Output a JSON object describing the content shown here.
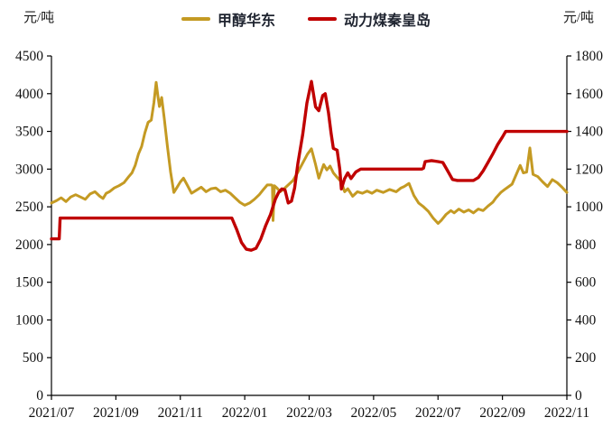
{
  "chart_data": {
    "type": "line",
    "title": "",
    "left_axis": {
      "unit": "元/吨",
      "min": 0,
      "max": 4500,
      "step": 500,
      "ticks": [
        "0",
        "500",
        "1000",
        "1500",
        "2000",
        "2500",
        "3000",
        "3500",
        "4000",
        "4500"
      ]
    },
    "right_axis": {
      "unit": "元/吨",
      "min": 0,
      "max": 1800,
      "step": 200,
      "ticks": [
        "0",
        "200",
        "400",
        "600",
        "800",
        "1000",
        "1200",
        "1400",
        "1600",
        "1800"
      ]
    },
    "x_axis": {
      "labels": [
        "2021/07",
        "2021/09",
        "2021/11",
        "2022/01",
        "2022/03",
        "2022/05",
        "2022/07",
        "2022/09",
        "2022/11"
      ],
      "months_per_label": 2,
      "span_months": 16
    },
    "grid": "off",
    "legend_position": "top-center",
    "series": [
      {
        "name": "甲醇华东",
        "axis": "left",
        "color": "#C49A23",
        "width": 3,
        "points": [
          [
            0,
            2550
          ],
          [
            0.15,
            2580
          ],
          [
            0.3,
            2620
          ],
          [
            0.45,
            2570
          ],
          [
            0.6,
            2630
          ],
          [
            0.75,
            2660
          ],
          [
            0.9,
            2630
          ],
          [
            1.05,
            2600
          ],
          [
            1.2,
            2670
          ],
          [
            1.35,
            2700
          ],
          [
            1.5,
            2640
          ],
          [
            1.6,
            2610
          ],
          [
            1.7,
            2680
          ],
          [
            1.8,
            2700
          ],
          [
            1.95,
            2750
          ],
          [
            2.1,
            2780
          ],
          [
            2.25,
            2820
          ],
          [
            2.4,
            2900
          ],
          [
            2.5,
            2950
          ],
          [
            2.6,
            3050
          ],
          [
            2.7,
            3200
          ],
          [
            2.8,
            3300
          ],
          [
            2.9,
            3480
          ],
          [
            3.0,
            3620
          ],
          [
            3.1,
            3650
          ],
          [
            3.18,
            3880
          ],
          [
            3.25,
            4150
          ],
          [
            3.3,
            3980
          ],
          [
            3.35,
            3830
          ],
          [
            3.42,
            3950
          ],
          [
            3.5,
            3680
          ],
          [
            3.6,
            3300
          ],
          [
            3.7,
            2960
          ],
          [
            3.8,
            2690
          ],
          [
            3.9,
            2760
          ],
          [
            4.0,
            2830
          ],
          [
            4.1,
            2880
          ],
          [
            4.2,
            2800
          ],
          [
            4.35,
            2680
          ],
          [
            4.5,
            2720
          ],
          [
            4.65,
            2760
          ],
          [
            4.8,
            2700
          ],
          [
            4.95,
            2740
          ],
          [
            5.1,
            2750
          ],
          [
            5.25,
            2700
          ],
          [
            5.4,
            2720
          ],
          [
            5.55,
            2680
          ],
          [
            5.7,
            2620
          ],
          [
            5.85,
            2560
          ],
          [
            6.0,
            2520
          ],
          [
            6.15,
            2550
          ],
          [
            6.3,
            2600
          ],
          [
            6.45,
            2660
          ],
          [
            6.6,
            2740
          ],
          [
            6.7,
            2790
          ],
          [
            6.83,
            2790
          ],
          [
            6.86,
            2780
          ],
          [
            6.88,
            2320
          ],
          [
            6.92,
            2780
          ],
          [
            7.0,
            2750
          ],
          [
            7.1,
            2700
          ],
          [
            7.2,
            2730
          ],
          [
            7.35,
            2790
          ],
          [
            7.5,
            2850
          ],
          [
            7.65,
            2960
          ],
          [
            7.8,
            3080
          ],
          [
            7.95,
            3200
          ],
          [
            8.07,
            3270
          ],
          [
            8.2,
            3060
          ],
          [
            8.3,
            2880
          ],
          [
            8.45,
            3060
          ],
          [
            8.55,
            2990
          ],
          [
            8.65,
            3040
          ],
          [
            8.75,
            2950
          ],
          [
            8.85,
            2900
          ],
          [
            9.0,
            2830
          ],
          [
            9.1,
            2700
          ],
          [
            9.2,
            2740
          ],
          [
            9.35,
            2640
          ],
          [
            9.5,
            2700
          ],
          [
            9.65,
            2680
          ],
          [
            9.8,
            2710
          ],
          [
            9.95,
            2680
          ],
          [
            10.1,
            2720
          ],
          [
            10.3,
            2690
          ],
          [
            10.5,
            2730
          ],
          [
            10.7,
            2700
          ],
          [
            10.85,
            2750
          ],
          [
            10.95,
            2770
          ],
          [
            11.1,
            2810
          ],
          [
            11.25,
            2650
          ],
          [
            11.4,
            2550
          ],
          [
            11.55,
            2500
          ],
          [
            11.7,
            2440
          ],
          [
            11.85,
            2350
          ],
          [
            12.0,
            2280
          ],
          [
            12.1,
            2320
          ],
          [
            12.25,
            2400
          ],
          [
            12.4,
            2450
          ],
          [
            12.5,
            2420
          ],
          [
            12.65,
            2470
          ],
          [
            12.8,
            2430
          ],
          [
            12.95,
            2460
          ],
          [
            13.1,
            2420
          ],
          [
            13.25,
            2470
          ],
          [
            13.4,
            2450
          ],
          [
            13.55,
            2510
          ],
          [
            13.7,
            2560
          ],
          [
            13.8,
            2620
          ],
          [
            13.95,
            2690
          ],
          [
            14.1,
            2740
          ],
          [
            14.3,
            2800
          ],
          [
            14.45,
            2950
          ],
          [
            14.55,
            3050
          ],
          [
            14.65,
            2950
          ],
          [
            14.75,
            2960
          ],
          [
            14.85,
            3280
          ],
          [
            14.95,
            2930
          ],
          [
            15.1,
            2900
          ],
          [
            15.25,
            2830
          ],
          [
            15.4,
            2770
          ],
          [
            15.55,
            2860
          ],
          [
            15.7,
            2820
          ],
          [
            15.85,
            2760
          ],
          [
            16,
            2690
          ]
        ]
      },
      {
        "name": "动力煤秦皇岛",
        "axis": "right",
        "color": "#C00000",
        "width": 3.4,
        "points": [
          [
            0,
            830
          ],
          [
            0.24,
            830
          ],
          [
            0.27,
            940
          ],
          [
            5.6,
            940
          ],
          [
            5.75,
            880
          ],
          [
            5.9,
            810
          ],
          [
            6.05,
            775
          ],
          [
            6.2,
            770
          ],
          [
            6.35,
            780
          ],
          [
            6.5,
            830
          ],
          [
            6.65,
            900
          ],
          [
            6.8,
            960
          ],
          [
            6.95,
            1040
          ],
          [
            7.05,
            1075
          ],
          [
            7.15,
            1095
          ],
          [
            7.25,
            1090
          ],
          [
            7.35,
            1020
          ],
          [
            7.45,
            1030
          ],
          [
            7.55,
            1100
          ],
          [
            7.65,
            1230
          ],
          [
            7.8,
            1385
          ],
          [
            7.93,
            1550
          ],
          [
            8.07,
            1665
          ],
          [
            8.2,
            1530
          ],
          [
            8.3,
            1510
          ],
          [
            8.42,
            1590
          ],
          [
            8.5,
            1600
          ],
          [
            8.6,
            1500
          ],
          [
            8.68,
            1390
          ],
          [
            8.75,
            1310
          ],
          [
            8.87,
            1300
          ],
          [
            8.95,
            1200
          ],
          [
            9.0,
            1095
          ],
          [
            9.1,
            1150
          ],
          [
            9.2,
            1180
          ],
          [
            9.3,
            1150
          ],
          [
            9.45,
            1185
          ],
          [
            9.6,
            1200
          ],
          [
            10.5,
            1200
          ],
          [
            11.5,
            1200
          ],
          [
            11.55,
            1205
          ],
          [
            11.6,
            1240
          ],
          [
            11.8,
            1245
          ],
          [
            12.0,
            1240
          ],
          [
            12.15,
            1235
          ],
          [
            12.3,
            1190
          ],
          [
            12.45,
            1145
          ],
          [
            12.6,
            1140
          ],
          [
            13.1,
            1140
          ],
          [
            13.25,
            1155
          ],
          [
            13.4,
            1190
          ],
          [
            13.55,
            1235
          ],
          [
            13.7,
            1280
          ],
          [
            13.85,
            1330
          ],
          [
            14.0,
            1370
          ],
          [
            14.1,
            1400
          ],
          [
            16,
            1400
          ]
        ]
      }
    ]
  }
}
